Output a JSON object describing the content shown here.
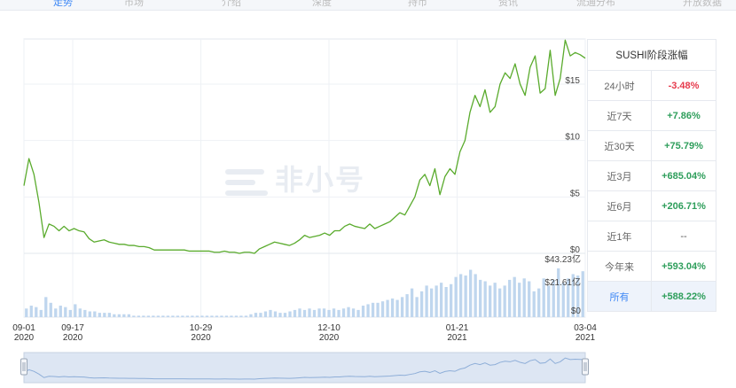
{
  "tabs": [
    {
      "label": "走势"
    },
    {
      "label": "市场"
    },
    {
      "label": "介绍"
    },
    {
      "label": "深度"
    },
    {
      "label": "持币"
    },
    {
      "label": "资讯"
    },
    {
      "label": "流通分布"
    },
    {
      "label": "开放数据"
    }
  ],
  "watermark": "非小号",
  "colors": {
    "price_line": "#5aab2d",
    "up": "#2e9e5b",
    "down": "#e6394b",
    "volume": "#bfd6ee",
    "accent": "#3d87f5"
  },
  "chart_data": {
    "type": "line",
    "price": {
      "x_start": "2020-09-01",
      "x_end": "2021-03-04",
      "y_ticks": [
        "$0",
        "$5",
        "$10",
        "$15"
      ],
      "ylim": [
        0,
        19
      ],
      "values": [
        6.0,
        8.4,
        7.0,
        4.5,
        1.4,
        2.6,
        2.4,
        2.0,
        2.4,
        2.0,
        2.2,
        2.0,
        1.9,
        1.3,
        1.0,
        1.1,
        1.2,
        1.0,
        0.9,
        0.8,
        0.8,
        0.7,
        0.7,
        0.6,
        0.6,
        0.5,
        0.3,
        0.3,
        0.3,
        0.3,
        0.3,
        0.3,
        0.3,
        0.2,
        0.2,
        0.2,
        0.2,
        0.2,
        0.1,
        0.1,
        0.2,
        0.1,
        0.1,
        0.0,
        0.1,
        0.1,
        0.0,
        0.4,
        0.6,
        0.8,
        1.0,
        0.9,
        0.8,
        0.7,
        0.9,
        1.2,
        1.6,
        1.4,
        1.5,
        1.6,
        1.8,
        1.6,
        2.0,
        2.0,
        2.4,
        2.6,
        2.4,
        2.3,
        2.2,
        2.6,
        2.2,
        2.4,
        2.6,
        2.8,
        3.2,
        3.6,
        3.4,
        4.2,
        5.0,
        6.5,
        7.0,
        6.0,
        7.5,
        5.2,
        6.8,
        7.5,
        7.0,
        9.0,
        10.0,
        12.5,
        14.0,
        13.0,
        14.5,
        12.5,
        13.0,
        15.0,
        16.0,
        15.5,
        16.8,
        15.0,
        14.0,
        16.5,
        17.5,
        14.2,
        14.6,
        18.0,
        14.0,
        15.5,
        18.9,
        17.5,
        17.8,
        17.6,
        17.3
      ]
    },
    "volume": {
      "y_ticks": [
        "$0",
        "$21.61亿",
        "$43.23亿"
      ],
      "ylim": [
        0,
        43.23
      ],
      "values": [
        6,
        8,
        7,
        5,
        14,
        10,
        6,
        8,
        7,
        5,
        9,
        6,
        5,
        4,
        4,
        3,
        3,
        3,
        2,
        2,
        2,
        2,
        1,
        1,
        1,
        1,
        1,
        1,
        1,
        1,
        1,
        1,
        1,
        1,
        1,
        1,
        1,
        1,
        1,
        1,
        1,
        1,
        1,
        1,
        1,
        1,
        2,
        3,
        3,
        4,
        5,
        4,
        3,
        3,
        4,
        5,
        6,
        5,
        6,
        5,
        6,
        6,
        5,
        6,
        5,
        6,
        7,
        6,
        5,
        8,
        9,
        10,
        10,
        11,
        12,
        13,
        12,
        14,
        16,
        20,
        14,
        18,
        22,
        20,
        22,
        24,
        21,
        23,
        28,
        30,
        29,
        33,
        30,
        26,
        25,
        22,
        24,
        20,
        22,
        26,
        28,
        24,
        27,
        25,
        18,
        20,
        27,
        22,
        26,
        34,
        24,
        27,
        30,
        29,
        32
      ]
    },
    "x_ticks": [
      {
        "date": "09-01",
        "year": "2020",
        "pos": 0
      },
      {
        "date": "09-17",
        "year": "2020",
        "pos": 16
      },
      {
        "date": "10-29",
        "year": "2020",
        "pos": 58
      },
      {
        "date": "12-10",
        "year": "2020",
        "pos": 100
      },
      {
        "date": "01-21",
        "year": "2021",
        "pos": 142
      },
      {
        "date": "03-04",
        "year": "2021",
        "pos": 184
      }
    ],
    "x_domain": [
      0,
      184
    ]
  },
  "stats": {
    "title": "SUSHI阶段涨幅",
    "rows": [
      {
        "period": "24小时",
        "value": "-3.48%",
        "dir": "down"
      },
      {
        "period": "近7天",
        "value": "+7.86%",
        "dir": "up"
      },
      {
        "period": "近30天",
        "value": "+75.79%",
        "dir": "up"
      },
      {
        "period": "近3月",
        "value": "+685.04%",
        "dir": "up"
      },
      {
        "period": "近6月",
        "value": "+206.71%",
        "dir": "up"
      },
      {
        "period": "近1年",
        "value": "--",
        "dir": "none"
      },
      {
        "period": "今年来",
        "value": "+593.04%",
        "dir": "up"
      },
      {
        "period": "所有",
        "value": "+588.22%",
        "dir": "up",
        "active": true
      }
    ]
  }
}
